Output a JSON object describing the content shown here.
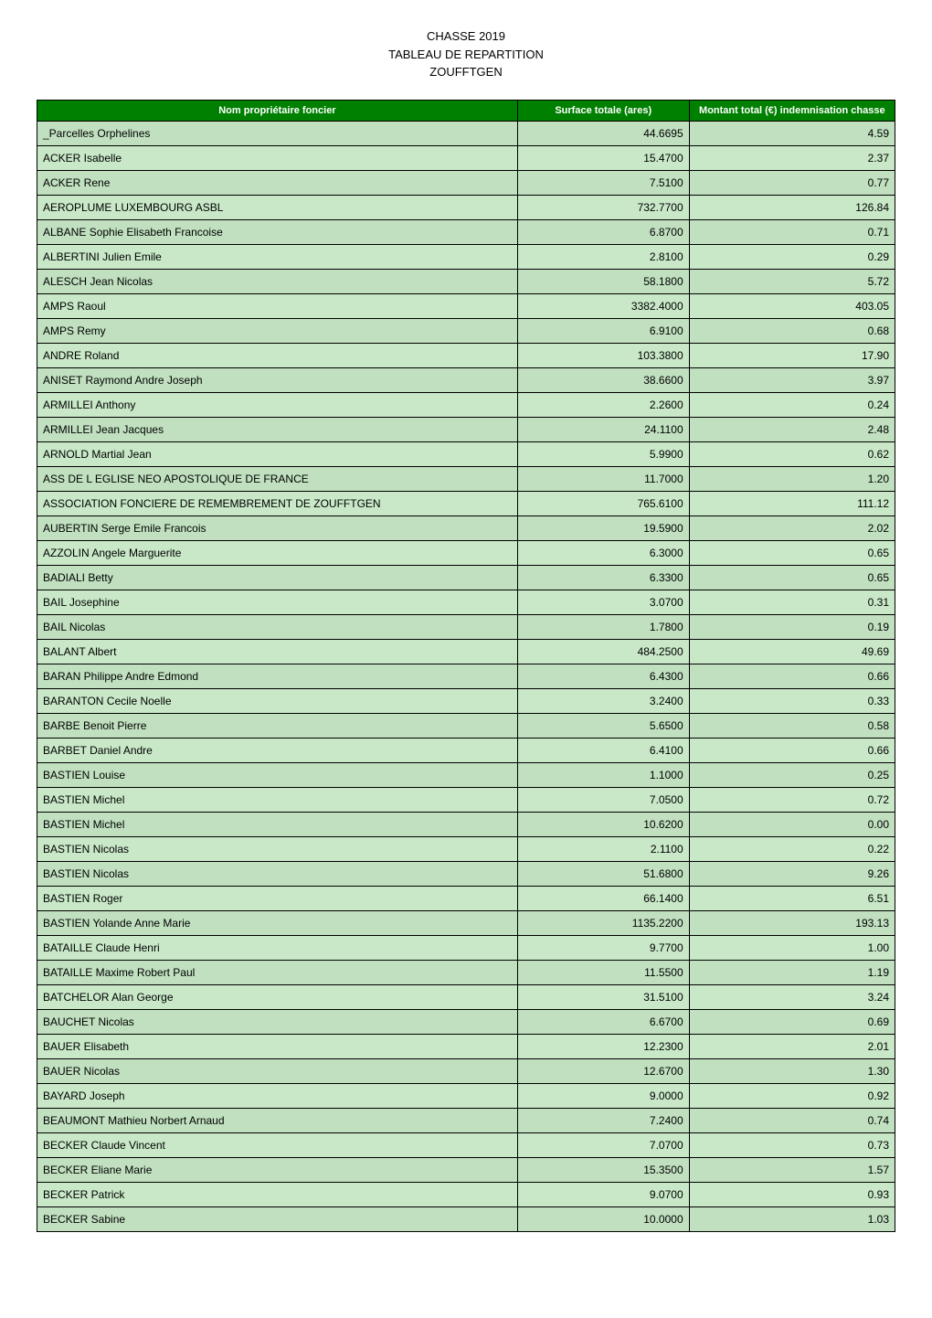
{
  "header": {
    "line1": "CHASSE 2019",
    "line2": "TABLEAU DE REPARTITION",
    "line3": "ZOUFFTGEN"
  },
  "table": {
    "columns": {
      "name": "Nom propriétaire foncier",
      "surface": "Surface totale (ares)",
      "montant": "Montant total (€) indemnisation chasse"
    },
    "header_bg": "#008000",
    "header_text_color": "#ffffff",
    "row_bg_odd": "#c0e0c0",
    "row_bg_even": "#c8e8c8",
    "border_color": "#000000",
    "font_size_header_pt": 11,
    "font_size_body_pt": 12,
    "col_widths_pct": [
      56,
      20,
      24
    ],
    "rows": [
      {
        "name": "_Parcelles Orphelines",
        "surface": "44.6695",
        "montant": "4.59"
      },
      {
        "name": "ACKER Isabelle",
        "surface": "15.4700",
        "montant": "2.37"
      },
      {
        "name": "ACKER Rene",
        "surface": "7.5100",
        "montant": "0.77"
      },
      {
        "name": "AEROPLUME LUXEMBOURG ASBL",
        "surface": "732.7700",
        "montant": "126.84"
      },
      {
        "name": "ALBANE Sophie Elisabeth Francoise",
        "surface": "6.8700",
        "montant": "0.71"
      },
      {
        "name": "ALBERTINI Julien Emile",
        "surface": "2.8100",
        "montant": "0.29"
      },
      {
        "name": "ALESCH Jean Nicolas",
        "surface": "58.1800",
        "montant": "5.72"
      },
      {
        "name": "AMPS Raoul",
        "surface": "3382.4000",
        "montant": "403.05"
      },
      {
        "name": "AMPS Remy",
        "surface": "6.9100",
        "montant": "0.68"
      },
      {
        "name": "ANDRE Roland",
        "surface": "103.3800",
        "montant": "17.90"
      },
      {
        "name": "ANISET Raymond Andre Joseph",
        "surface": "38.6600",
        "montant": "3.97"
      },
      {
        "name": "ARMILLEI Anthony",
        "surface": "2.2600",
        "montant": "0.24"
      },
      {
        "name": "ARMILLEI Jean Jacques",
        "surface": "24.1100",
        "montant": "2.48"
      },
      {
        "name": "ARNOLD Martial Jean",
        "surface": "5.9900",
        "montant": "0.62"
      },
      {
        "name": "ASS DE L EGLISE NEO APOSTOLIQUE DE FRANCE",
        "surface": "11.7000",
        "montant": "1.20"
      },
      {
        "name": "ASSOCIATION FONCIERE DE REMEMBREMENT DE ZOUFFTGEN",
        "surface": "765.6100",
        "montant": "111.12"
      },
      {
        "name": "AUBERTIN Serge Emile Francois",
        "surface": "19.5900",
        "montant": "2.02"
      },
      {
        "name": "AZZOLIN Angele Marguerite",
        "surface": "6.3000",
        "montant": "0.65"
      },
      {
        "name": "BADIALI Betty",
        "surface": "6.3300",
        "montant": "0.65"
      },
      {
        "name": "BAIL Josephine",
        "surface": "3.0700",
        "montant": "0.31"
      },
      {
        "name": "BAIL Nicolas",
        "surface": "1.7800",
        "montant": "0.19"
      },
      {
        "name": "BALANT Albert",
        "surface": "484.2500",
        "montant": "49.69"
      },
      {
        "name": "BARAN Philippe Andre Edmond",
        "surface": "6.4300",
        "montant": "0.66"
      },
      {
        "name": "BARANTON Cecile Noelle",
        "surface": "3.2400",
        "montant": "0.33"
      },
      {
        "name": "BARBE Benoit Pierre",
        "surface": "5.6500",
        "montant": "0.58"
      },
      {
        "name": "BARBET Daniel Andre",
        "surface": "6.4100",
        "montant": "0.66"
      },
      {
        "name": "BASTIEN Louise",
        "surface": "1.1000",
        "montant": "0.25"
      },
      {
        "name": "BASTIEN Michel",
        "surface": "7.0500",
        "montant": "0.72"
      },
      {
        "name": "BASTIEN Michel",
        "surface": "10.6200",
        "montant": "0.00"
      },
      {
        "name": "BASTIEN Nicolas",
        "surface": "2.1100",
        "montant": "0.22"
      },
      {
        "name": "BASTIEN Nicolas",
        "surface": "51.6800",
        "montant": "9.26"
      },
      {
        "name": "BASTIEN Roger",
        "surface": "66.1400",
        "montant": "6.51"
      },
      {
        "name": "BASTIEN Yolande Anne Marie",
        "surface": "1135.2200",
        "montant": "193.13"
      },
      {
        "name": "BATAILLE Claude Henri",
        "surface": "9.7700",
        "montant": "1.00"
      },
      {
        "name": "BATAILLE Maxime Robert Paul",
        "surface": "11.5500",
        "montant": "1.19"
      },
      {
        "name": "BATCHELOR Alan George",
        "surface": "31.5100",
        "montant": "3.24"
      },
      {
        "name": "BAUCHET Nicolas",
        "surface": "6.6700",
        "montant": "0.69"
      },
      {
        "name": "BAUER Elisabeth",
        "surface": "12.2300",
        "montant": "2.01"
      },
      {
        "name": "BAUER Nicolas",
        "surface": "12.6700",
        "montant": "1.30"
      },
      {
        "name": "BAYARD Joseph",
        "surface": "9.0000",
        "montant": "0.92"
      },
      {
        "name": "BEAUMONT Mathieu Norbert Arnaud",
        "surface": "7.2400",
        "montant": "0.74"
      },
      {
        "name": "BECKER Claude Vincent",
        "surface": "7.0700",
        "montant": "0.73"
      },
      {
        "name": "BECKER Eliane Marie",
        "surface": "15.3500",
        "montant": "1.57"
      },
      {
        "name": "BECKER Patrick",
        "surface": "9.0700",
        "montant": "0.93"
      },
      {
        "name": "BECKER Sabine",
        "surface": "10.0000",
        "montant": "1.03"
      }
    ]
  }
}
